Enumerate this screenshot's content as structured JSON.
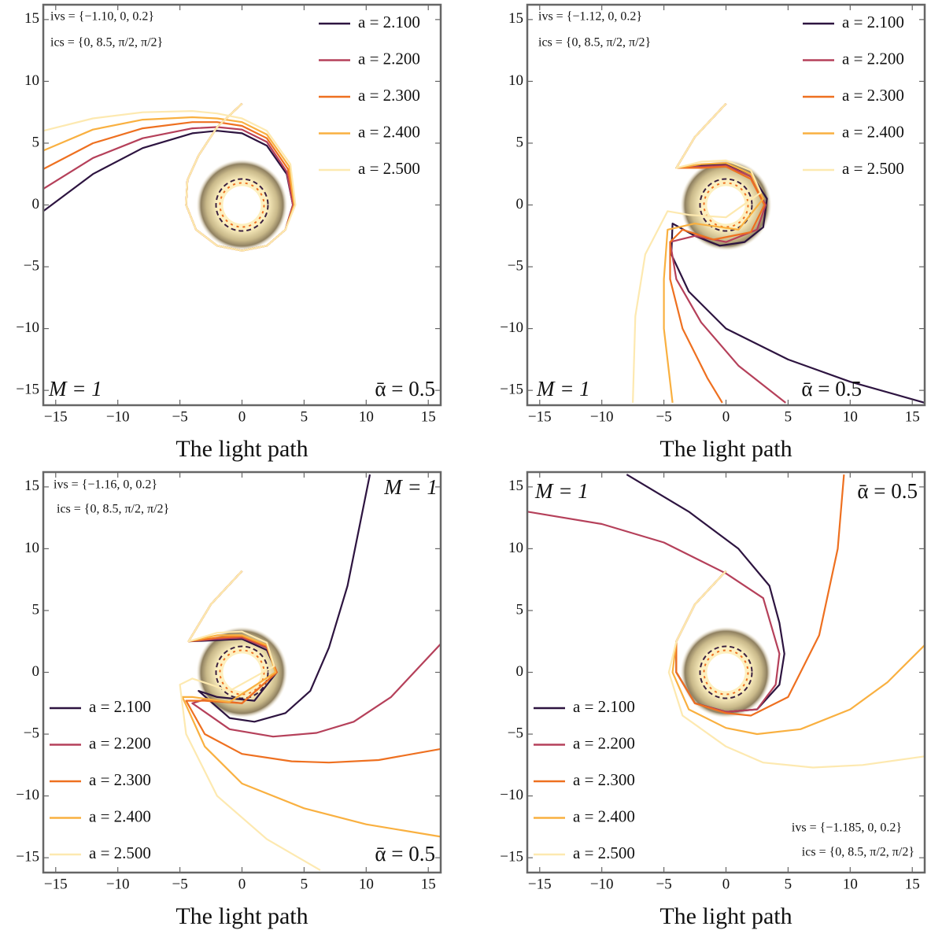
{
  "chart_data": [
    {
      "type": "line",
      "xlabel": "The light path",
      "legend": "upper right",
      "xlim": [
        -16,
        16
      ],
      "ylim": [
        -16.2,
        16.2
      ],
      "xticks": [
        {
          "value": -15,
          "label": "−15"
        },
        {
          "value": -10,
          "label": "−10"
        },
        {
          "value": -5,
          "label": "−5"
        },
        0,
        5,
        10,
        15
      ],
      "yticks": [
        {
          "value": -15,
          "label": "−15"
        },
        {
          "value": -10,
          "label": "−10"
        },
        {
          "value": -5,
          "label": "−5"
        },
        0,
        5,
        10,
        15
      ],
      "annotations": [
        "M = 1",
        "ᾱ = 0.5",
        "ivs = {−1.10, 0, 0.2}",
        "ics = {0, 8.5, π/2, π/2}"
      ],
      "series": [
        {
          "name": "a = 2.100",
          "color": "#2d1440",
          "x": [
            -16,
            -12,
            -8,
            -4,
            -2,
            0,
            2,
            3.6,
            4.1,
            3.5,
            2,
            0,
            -2,
            -3.7,
            -4.5,
            -4.4,
            -3.5,
            -2,
            0
          ],
          "values": [
            -0.5,
            2.5,
            4.6,
            5.8,
            6,
            5.8,
            4.8,
            2.5,
            0,
            -2,
            -3.3,
            -3.7,
            -3.3,
            -2,
            0,
            2,
            4,
            6.3,
            8.2
          ]
        },
        {
          "name": "a = 2.200",
          "color": "#b5405a",
          "x": [
            -16,
            -12,
            -8,
            -4,
            -2,
            0,
            2,
            3.6,
            4.1,
            3.5,
            2,
            0,
            -2,
            -3.7,
            -4.5,
            -4.4,
            -3.5,
            -2,
            0
          ],
          "values": [
            1.3,
            3.8,
            5.4,
            6.2,
            6.3,
            6.1,
            5.1,
            2.7,
            0,
            -2,
            -3.3,
            -3.7,
            -3.3,
            -2,
            0,
            2,
            4,
            6.3,
            8.2
          ]
        },
        {
          "name": "a = 2.300",
          "color": "#ee7020",
          "x": [
            -16,
            -12,
            -8,
            -4,
            -2,
            0,
            2,
            3.7,
            4.2,
            3.5,
            2,
            0,
            -2,
            -3.7,
            -4.5,
            -4.4,
            -3.5,
            -2,
            0
          ],
          "values": [
            2.9,
            5,
            6.2,
            6.7,
            6.7,
            6.4,
            5.4,
            2.9,
            0,
            -2,
            -3.3,
            -3.7,
            -3.3,
            -2,
            0,
            2,
            4,
            6.3,
            8.2
          ]
        },
        {
          "name": "a = 2.400",
          "color": "#f9b040",
          "x": [
            -16,
            -12,
            -8,
            -4,
            -2,
            0,
            2,
            3.8,
            4.2,
            3.5,
            2,
            0,
            -2,
            -3.7,
            -4.5,
            -4.4,
            -3.5,
            -2,
            0
          ],
          "values": [
            4.4,
            6.1,
            6.9,
            7.1,
            7,
            6.7,
            5.7,
            3.1,
            0,
            -2,
            -3.3,
            -3.7,
            -3.3,
            -2,
            0,
            2,
            4,
            6.3,
            8.2
          ]
        },
        {
          "name": "a = 2.500",
          "color": "#fde9b0",
          "x": [
            -16,
            -12,
            -8,
            -4,
            -2,
            0,
            2,
            3.9,
            4.3,
            3.5,
            2,
            0,
            -2,
            -3.7,
            -4.5,
            -4.4,
            -3.5,
            -2,
            0
          ],
          "values": [
            6,
            7,
            7.5,
            7.6,
            7.4,
            7,
            6,
            3.3,
            0,
            -2,
            -3.3,
            -3.7,
            -3.3,
            -2,
            0,
            2,
            4,
            6.3,
            8.2
          ]
        }
      ]
    },
    {
      "type": "line",
      "xlabel": "The light path",
      "legend": "upper right",
      "xlim": [
        -16,
        16
      ],
      "ylim": [
        -16.2,
        16.2
      ],
      "xticks": [
        {
          "value": -15,
          "label": "−15"
        },
        {
          "value": -10,
          "label": "−10"
        },
        {
          "value": -5,
          "label": "−5"
        },
        0,
        5,
        10,
        15
      ],
      "yticks": [
        {
          "value": -15,
          "label": "−15"
        },
        {
          "value": -10,
          "label": "−10"
        },
        {
          "value": -5,
          "label": "−5"
        },
        0,
        5,
        10,
        15
      ],
      "annotations": [
        "M = 1",
        "ᾱ = 0.5",
        "ivs = {−1.12, 0, 0.2}",
        "ics = {0, 8.5, π/2, π/2}"
      ],
      "series": [
        {
          "name": "a = 2.100",
          "color": "#2d1440",
          "x": [
            0,
            -2.5,
            -4,
            -2,
            0,
            2,
            3.3,
            3,
            1.5,
            -0.5,
            -2.5,
            -4.3,
            -4.4,
            -3,
            0,
            5,
            10,
            16
          ],
          "values": [
            8.2,
            5.5,
            3,
            3.2,
            3.3,
            2.5,
            0.5,
            -1.8,
            -3,
            -3.3,
            -2.5,
            -1.5,
            -4,
            -7,
            -10,
            -12.5,
            -14.3,
            -16
          ]
        },
        {
          "name": "a = 2.200",
          "color": "#b5405a",
          "x": [
            0,
            -2.5,
            -4,
            -2,
            0,
            2,
            3.2,
            2.5,
            0,
            -2.5,
            -4.5,
            -4,
            -2,
            1,
            4.8
          ],
          "values": [
            8.2,
            5.5,
            3,
            3.1,
            3.2,
            2.3,
            0,
            -2,
            -3,
            -2.5,
            -3,
            -6,
            -9.5,
            -13,
            -16
          ]
        },
        {
          "name": "a = 2.300",
          "color": "#ee7020",
          "x": [
            0,
            -2.5,
            -4,
            -2,
            0,
            2,
            3.1,
            2,
            -1,
            -3.5,
            -4.5,
            -4.5,
            -3.5,
            -1.5,
            -0.3
          ],
          "values": [
            8.2,
            5.5,
            3,
            3,
            3.1,
            2.1,
            0,
            -2.2,
            -2.8,
            -2,
            -3,
            -6,
            -10,
            -14,
            -16
          ]
        },
        {
          "name": "a = 2.400",
          "color": "#f9b040",
          "x": [
            0,
            -2.5,
            -4,
            -2,
            0,
            2,
            3,
            1,
            -2.5,
            -4.7,
            -5,
            -5,
            -4.3
          ],
          "values": [
            8.2,
            5.5,
            3,
            3.3,
            3.4,
            2.5,
            0.5,
            -2,
            -1.5,
            -2,
            -6,
            -10,
            -16
          ]
        },
        {
          "name": "a = 2.500",
          "color": "#fde9b0",
          "x": [
            0,
            -2.5,
            -4,
            -2,
            0,
            2,
            2.8,
            0,
            -3,
            -4.7,
            -6.5,
            -7.3,
            -7.5
          ],
          "values": [
            8.2,
            5.5,
            3,
            3.5,
            3.6,
            2.8,
            1,
            -1,
            -0.8,
            -0.5,
            -4,
            -9,
            -16
          ]
        }
      ]
    },
    {
      "type": "line",
      "xlabel": "The light path",
      "legend": "lower left",
      "xlim": [
        -16,
        16
      ],
      "ylim": [
        -16.2,
        16.2
      ],
      "xticks": [
        {
          "value": -15,
          "label": "−15"
        },
        {
          "value": -10,
          "label": "−10"
        },
        {
          "value": -5,
          "label": "−5"
        },
        0,
        5,
        10,
        15
      ],
      "yticks": [
        {
          "value": -15,
          "label": "−15"
        },
        {
          "value": -10,
          "label": "−10"
        },
        {
          "value": -5,
          "label": "−5"
        },
        0,
        5,
        10,
        15
      ],
      "annotations": [
        "M = 1",
        "ᾱ = 0.5",
        "ivs = {−1.16, 0, 0.2}",
        "ics = {0, 8.5, π/2, π/2}"
      ],
      "series": [
        {
          "name": "a = 2.100",
          "color": "#2d1440",
          "x": [
            0,
            -2.5,
            -4.3,
            -2,
            0,
            2,
            2.8,
            1,
            -2,
            -3.5,
            -1,
            1,
            3.5,
            5.5,
            7,
            8.5,
            9.5,
            10.3
          ],
          "values": [
            8.2,
            5.5,
            2.5,
            2.6,
            2.7,
            1.8,
            0,
            -2.3,
            -2,
            -1.5,
            -3.7,
            -4,
            -3.3,
            -1.5,
            2,
            7,
            12,
            16
          ]
        },
        {
          "name": "a = 2.200",
          "color": "#b5405a",
          "x": [
            0,
            -2.5,
            -4.3,
            -2,
            0,
            2,
            2.8,
            0,
            -3,
            -4,
            -1,
            2.5,
            6,
            9,
            12,
            16
          ],
          "values": [
            8.2,
            5.5,
            2.5,
            2.7,
            2.8,
            2,
            0,
            -2.5,
            -2.2,
            -2.5,
            -4.6,
            -5.2,
            -4.9,
            -4,
            -2,
            2.3
          ]
        },
        {
          "name": "a = 2.300",
          "color": "#ee7020",
          "x": [
            0,
            -2.5,
            -4.3,
            -2,
            0,
            2,
            2.8,
            0,
            -3,
            -4.5,
            -3,
            0,
            4,
            7,
            11,
            16
          ],
          "values": [
            8.2,
            5.5,
            2.5,
            2.8,
            2.9,
            2.1,
            0,
            -2.5,
            -2.3,
            -2.3,
            -5,
            -6.6,
            -7.2,
            -7.3,
            -7.1,
            -6.2
          ]
        },
        {
          "name": "a = 2.400",
          "color": "#f9b040",
          "x": [
            0,
            -2.5,
            -4.3,
            -2,
            0,
            2,
            2.7,
            -1,
            -4,
            -4.8,
            -3,
            0,
            5,
            10,
            16
          ],
          "values": [
            8.2,
            5.5,
            2.5,
            3,
            3,
            2.2,
            0,
            -2.4,
            -2,
            -2,
            -6,
            -9,
            -11,
            -12.3,
            -13.3
          ]
        },
        {
          "name": "a = 2.500",
          "color": "#fde9b0",
          "x": [
            0,
            -2.5,
            -4.3,
            -2,
            0,
            2,
            2.6,
            -1,
            -4,
            -5,
            -4.5,
            -2,
            2,
            6.3
          ],
          "values": [
            8.2,
            5.5,
            2.5,
            3.2,
            3.3,
            2.4,
            0.5,
            -1.5,
            -0.5,
            -1,
            -5,
            -10,
            -13.5,
            -16
          ]
        }
      ]
    },
    {
      "type": "line",
      "xlabel": "The light path",
      "legend": "lower left",
      "xlim": [
        -16,
        16
      ],
      "ylim": [
        -16.2,
        16.2
      ],
      "xticks": [
        {
          "value": -15,
          "label": "−15"
        },
        {
          "value": -10,
          "label": "−10"
        },
        {
          "value": -5,
          "label": "−5"
        },
        0,
        5,
        10,
        15
      ],
      "yticks": [
        {
          "value": -15,
          "label": "−15"
        },
        {
          "value": -10,
          "label": "−10"
        },
        {
          "value": -5,
          "label": "−5"
        },
        0,
        5,
        10,
        15
      ],
      "annotations": [
        "M = 1",
        "ᾱ = 0.5",
        "ivs = {−1.185, 0, 0.2}",
        "ics = {0, 8.5, π/2, π/2}"
      ],
      "series": [
        {
          "name": "a = 2.100",
          "color": "#2d1440",
          "x": [
            0,
            -2.5,
            -4,
            -4,
            -2.5,
            0,
            2.5,
            4.3,
            4.7,
            4.3,
            3.5,
            1,
            -3,
            -8
          ],
          "values": [
            8.2,
            5.5,
            2.5,
            0,
            -2.5,
            -3.2,
            -3,
            -1,
            1.5,
            4,
            7,
            10,
            13,
            16
          ]
        },
        {
          "name": "a = 2.200",
          "color": "#b5405a",
          "x": [
            0,
            -2.5,
            -4,
            -4,
            -2.5,
            0,
            2.5,
            4,
            4.3,
            3,
            0,
            -5,
            -10,
            -16
          ],
          "values": [
            8.2,
            5.5,
            2.5,
            0,
            -2.5,
            -3.2,
            -3,
            -1,
            1.5,
            6,
            8,
            10.5,
            12,
            13
          ]
        },
        {
          "name": "a = 2.300",
          "color": "#ee7020",
          "x": [
            0,
            -2.5,
            -4,
            -4,
            -2.5,
            0,
            2,
            5,
            7.5,
            9,
            9.5
          ],
          "values": [
            8.2,
            5.5,
            2.5,
            0,
            -2.5,
            -3.3,
            -3.5,
            -2,
            3,
            10,
            16
          ]
        },
        {
          "name": "a = 2.400",
          "color": "#f9b040",
          "x": [
            0,
            -2.5,
            -4,
            -4.3,
            -3,
            0,
            2.5,
            6,
            10,
            13,
            16
          ],
          "values": [
            8.2,
            5.5,
            2.5,
            0,
            -3,
            -4.5,
            -5,
            -4.6,
            -3,
            -0.8,
            2.2
          ]
        },
        {
          "name": "a = 2.500",
          "color": "#fde9b0",
          "x": [
            0,
            -2.5,
            -4,
            -4.6,
            -3.5,
            0,
            3,
            7,
            11,
            16
          ],
          "values": [
            8.2,
            5.5,
            2.5,
            0,
            -3.5,
            -6,
            -7.3,
            -7.7,
            -7.5,
            -6.8
          ]
        }
      ]
    }
  ]
}
